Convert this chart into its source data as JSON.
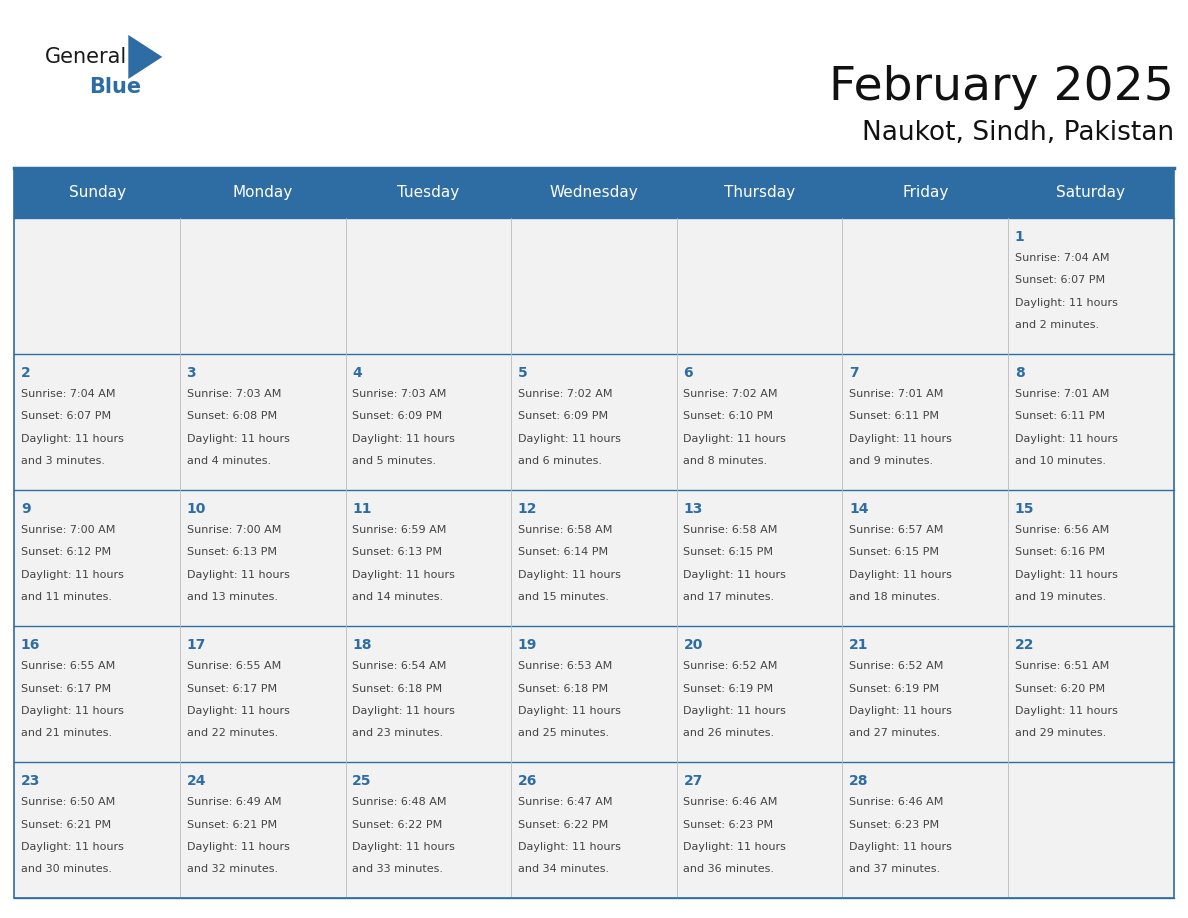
{
  "title": "February 2025",
  "subtitle": "Naukot, Sindh, Pakistan",
  "days_of_week": [
    "Sunday",
    "Monday",
    "Tuesday",
    "Wednesday",
    "Thursday",
    "Friday",
    "Saturday"
  ],
  "header_bg": "#2E6DA4",
  "header_text": "#FFFFFF",
  "cell_bg": "#F2F2F2",
  "text_color": "#444444",
  "day_num_color": "#2E6DA4",
  "line_color": "#2E6DA4",
  "calendar_data": [
    [
      null,
      null,
      null,
      null,
      null,
      null,
      {
        "day": 1,
        "lines": [
          "Sunrise: 7:04 AM",
          "Sunset: 6:07 PM",
          "Daylight: 11 hours",
          "and 2 minutes."
        ]
      }
    ],
    [
      {
        "day": 2,
        "lines": [
          "Sunrise: 7:04 AM",
          "Sunset: 6:07 PM",
          "Daylight: 11 hours",
          "and 3 minutes."
        ]
      },
      {
        "day": 3,
        "lines": [
          "Sunrise: 7:03 AM",
          "Sunset: 6:08 PM",
          "Daylight: 11 hours",
          "and 4 minutes."
        ]
      },
      {
        "day": 4,
        "lines": [
          "Sunrise: 7:03 AM",
          "Sunset: 6:09 PM",
          "Daylight: 11 hours",
          "and 5 minutes."
        ]
      },
      {
        "day": 5,
        "lines": [
          "Sunrise: 7:02 AM",
          "Sunset: 6:09 PM",
          "Daylight: 11 hours",
          "and 6 minutes."
        ]
      },
      {
        "day": 6,
        "lines": [
          "Sunrise: 7:02 AM",
          "Sunset: 6:10 PM",
          "Daylight: 11 hours",
          "and 8 minutes."
        ]
      },
      {
        "day": 7,
        "lines": [
          "Sunrise: 7:01 AM",
          "Sunset: 6:11 PM",
          "Daylight: 11 hours",
          "and 9 minutes."
        ]
      },
      {
        "day": 8,
        "lines": [
          "Sunrise: 7:01 AM",
          "Sunset: 6:11 PM",
          "Daylight: 11 hours",
          "and 10 minutes."
        ]
      }
    ],
    [
      {
        "day": 9,
        "lines": [
          "Sunrise: 7:00 AM",
          "Sunset: 6:12 PM",
          "Daylight: 11 hours",
          "and 11 minutes."
        ]
      },
      {
        "day": 10,
        "lines": [
          "Sunrise: 7:00 AM",
          "Sunset: 6:13 PM",
          "Daylight: 11 hours",
          "and 13 minutes."
        ]
      },
      {
        "day": 11,
        "lines": [
          "Sunrise: 6:59 AM",
          "Sunset: 6:13 PM",
          "Daylight: 11 hours",
          "and 14 minutes."
        ]
      },
      {
        "day": 12,
        "lines": [
          "Sunrise: 6:58 AM",
          "Sunset: 6:14 PM",
          "Daylight: 11 hours",
          "and 15 minutes."
        ]
      },
      {
        "day": 13,
        "lines": [
          "Sunrise: 6:58 AM",
          "Sunset: 6:15 PM",
          "Daylight: 11 hours",
          "and 17 minutes."
        ]
      },
      {
        "day": 14,
        "lines": [
          "Sunrise: 6:57 AM",
          "Sunset: 6:15 PM",
          "Daylight: 11 hours",
          "and 18 minutes."
        ]
      },
      {
        "day": 15,
        "lines": [
          "Sunrise: 6:56 AM",
          "Sunset: 6:16 PM",
          "Daylight: 11 hours",
          "and 19 minutes."
        ]
      }
    ],
    [
      {
        "day": 16,
        "lines": [
          "Sunrise: 6:55 AM",
          "Sunset: 6:17 PM",
          "Daylight: 11 hours",
          "and 21 minutes."
        ]
      },
      {
        "day": 17,
        "lines": [
          "Sunrise: 6:55 AM",
          "Sunset: 6:17 PM",
          "Daylight: 11 hours",
          "and 22 minutes."
        ]
      },
      {
        "day": 18,
        "lines": [
          "Sunrise: 6:54 AM",
          "Sunset: 6:18 PM",
          "Daylight: 11 hours",
          "and 23 minutes."
        ]
      },
      {
        "day": 19,
        "lines": [
          "Sunrise: 6:53 AM",
          "Sunset: 6:18 PM",
          "Daylight: 11 hours",
          "and 25 minutes."
        ]
      },
      {
        "day": 20,
        "lines": [
          "Sunrise: 6:52 AM",
          "Sunset: 6:19 PM",
          "Daylight: 11 hours",
          "and 26 minutes."
        ]
      },
      {
        "day": 21,
        "lines": [
          "Sunrise: 6:52 AM",
          "Sunset: 6:19 PM",
          "Daylight: 11 hours",
          "and 27 minutes."
        ]
      },
      {
        "day": 22,
        "lines": [
          "Sunrise: 6:51 AM",
          "Sunset: 6:20 PM",
          "Daylight: 11 hours",
          "and 29 minutes."
        ]
      }
    ],
    [
      {
        "day": 23,
        "lines": [
          "Sunrise: 6:50 AM",
          "Sunset: 6:21 PM",
          "Daylight: 11 hours",
          "and 30 minutes."
        ]
      },
      {
        "day": 24,
        "lines": [
          "Sunrise: 6:49 AM",
          "Sunset: 6:21 PM",
          "Daylight: 11 hours",
          "and 32 minutes."
        ]
      },
      {
        "day": 25,
        "lines": [
          "Sunrise: 6:48 AM",
          "Sunset: 6:22 PM",
          "Daylight: 11 hours",
          "and 33 minutes."
        ]
      },
      {
        "day": 26,
        "lines": [
          "Sunrise: 6:47 AM",
          "Sunset: 6:22 PM",
          "Daylight: 11 hours",
          "and 34 minutes."
        ]
      },
      {
        "day": 27,
        "lines": [
          "Sunrise: 6:46 AM",
          "Sunset: 6:23 PM",
          "Daylight: 11 hours",
          "and 36 minutes."
        ]
      },
      {
        "day": 28,
        "lines": [
          "Sunrise: 6:46 AM",
          "Sunset: 6:23 PM",
          "Daylight: 11 hours",
          "and 37 minutes."
        ]
      },
      null
    ]
  ],
  "fig_width": 11.88,
  "fig_height": 9.18
}
